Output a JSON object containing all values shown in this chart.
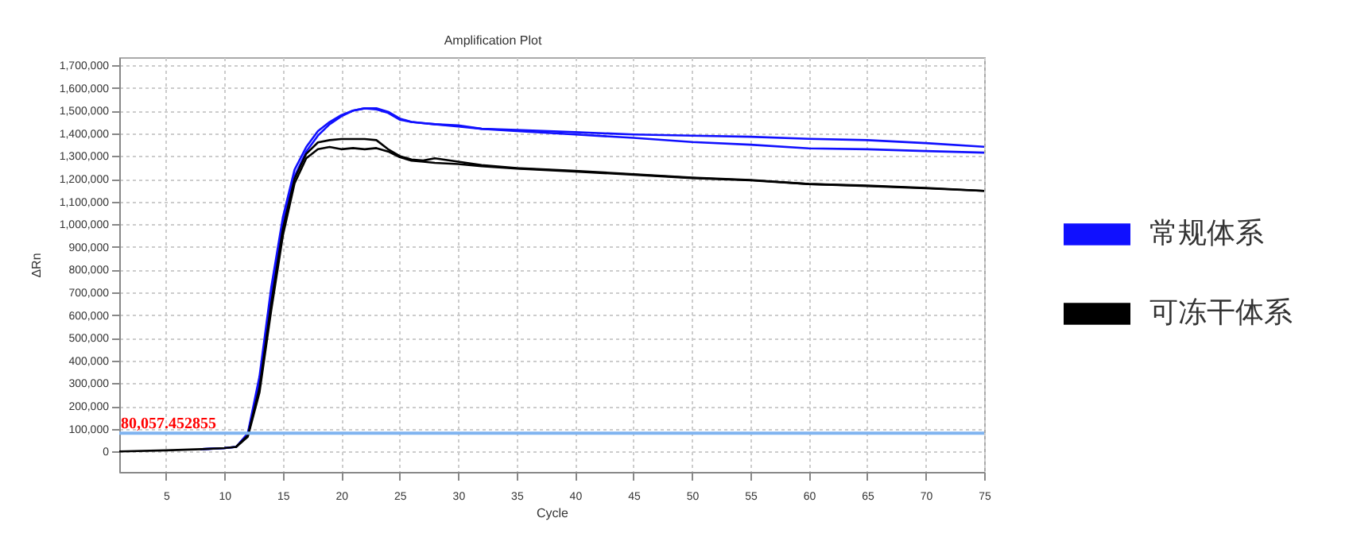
{
  "chart_data": {
    "type": "line",
    "title": "Amplification Plot",
    "xlabel": "Cycle",
    "ylabel": "ΔRn",
    "x": [
      1,
      5,
      8,
      10,
      11,
      12,
      13,
      14,
      15,
      16,
      17,
      18,
      19,
      20,
      21,
      22,
      23,
      24,
      25,
      26,
      27,
      28,
      30,
      32,
      35,
      40,
      45,
      50,
      55,
      60,
      65,
      70,
      75
    ],
    "series": [
      {
        "name": "常规体系",
        "color": "#1010ff",
        "values": [
          null,
          null,
          10000,
          15000,
          20000,
          80000,
          330000,
          720000,
          1030000,
          1240000,
          1340000,
          1410000,
          1450000,
          1480000,
          1500000,
          1510000,
          1510000,
          1495000,
          1465000,
          1450000,
          1445000,
          1440000,
          1435000,
          1420000,
          1415000,
          1405000,
          1395000,
          1390000,
          1385000,
          1376000,
          1370000,
          1357000,
          1341000
        ]
      },
      {
        "color": "#1010ff",
        "values": [
          null,
          null,
          10000,
          15000,
          20000,
          75000,
          300000,
          680000,
          1000000,
          1210000,
          1320000,
          1390000,
          1440000,
          1475000,
          1500000,
          1510000,
          1505000,
          1490000,
          1460000,
          1450000,
          1445000,
          1440000,
          1430000,
          1420000,
          1410000,
          1395000,
          1380000,
          1362000,
          1350000,
          1334000,
          1330000,
          1322000,
          1315000
        ]
      },
      {
        "name": "可冻干体系",
        "color": "#000000",
        "values": [
          0,
          5000,
          10000,
          15000,
          20000,
          70000,
          280000,
          650000,
          980000,
          1200000,
          1310000,
          1360000,
          1370000,
          1375000,
          1375000,
          1375000,
          1370000,
          1330000,
          1300000,
          1285000,
          1280000,
          1290000,
          1275000,
          1260000,
          1247000,
          1235000,
          1220000,
          1205000,
          1195000,
          1177000,
          1170000,
          1160000,
          1147000
        ]
      },
      {
        "color": "#000000",
        "values": [
          null,
          null,
          null,
          null,
          20000,
          65000,
          260000,
          620000,
          950000,
          1180000,
          1290000,
          1330000,
          1340000,
          1330000,
          1335000,
          1330000,
          1335000,
          1320000,
          1295000,
          1280000,
          1275000,
          1270000,
          1265000,
          1255000,
          1245000,
          1232000,
          1218000,
          1203000,
          1193000,
          1177000,
          1168000,
          1158000,
          1147000
        ]
      }
    ],
    "xlim": [
      1,
      75
    ],
    "xticks": [
      5,
      10,
      15,
      20,
      25,
      30,
      35,
      40,
      45,
      50,
      55,
      60,
      65,
      70,
      75
    ],
    "ylim": [
      -90000,
      1735000
    ],
    "yticks": [
      {
        "value": 0,
        "label": "0"
      },
      {
        "value": 100000,
        "label": "100,000"
      },
      {
        "value": 200000,
        "label": "200,000"
      },
      {
        "value": 300000,
        "label": "300,000"
      },
      {
        "value": 400000,
        "label": "400,000"
      },
      {
        "value": 500000,
        "label": "500,000"
      },
      {
        "value": 600000,
        "label": "600,000"
      },
      {
        "value": 700000,
        "label": "700,000"
      },
      {
        "value": 800000,
        "label": "800,000"
      },
      {
        "value": 900000,
        "label": "900,000"
      },
      {
        "value": 1000000,
        "label": "1,000,000"
      },
      {
        "value": 1100000,
        "label": "1,100,000"
      },
      {
        "value": 1200000,
        "label": "1,200,000"
      },
      {
        "value": 1300000,
        "label": "1,300,000"
      },
      {
        "value": 1400000,
        "label": "1,400,000"
      },
      {
        "value": 1500000,
        "label": "1,500,000"
      },
      {
        "value": 1600000,
        "label": "1,600,000"
      },
      {
        "value": 1700000,
        "label": "1,700,000"
      }
    ],
    "ref_lines": [
      {
        "axis": "y",
        "value": 80057.452855,
        "label": "80,057.452855",
        "color": "#80b4f0"
      }
    ],
    "grid": true,
    "legend": "right"
  }
}
